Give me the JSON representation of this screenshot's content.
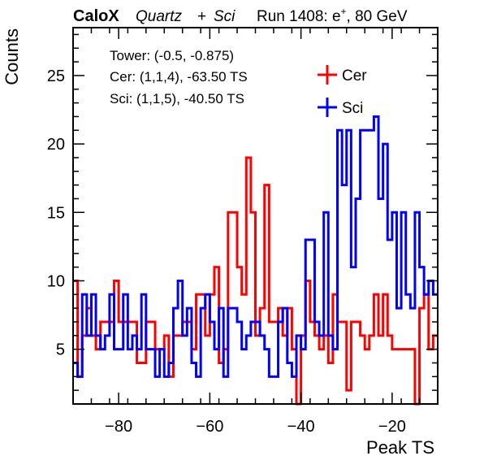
{
  "header": {
    "brand": "CaloX",
    "material_a": "Quartz",
    "plus": "+",
    "material_b": "Sci",
    "run_prefix": "Run 1408: e",
    "run_superscript": "+",
    "run_suffix": ", 80 GeV"
  },
  "info": {
    "tower": "Tower: (-0.5, -0.875)",
    "cer": "Cer: (1,1,4), -63.50 TS",
    "sci": "Sci: (1,1,5), -40.50 TS"
  },
  "chart_data": {
    "type": "line",
    "xlabel": "Peak TS",
    "ylabel": "Counts",
    "xlim": [
      -90,
      -10
    ],
    "ylim": [
      1,
      28.5
    ],
    "grid": false,
    "legend_position": "top-right",
    "x_ticks": [
      {
        "value": -80,
        "label": "−80"
      },
      {
        "value": -60,
        "label": "−60"
      },
      {
        "value": -40,
        "label": "−40"
      },
      {
        "value": -20,
        "label": "−20"
      }
    ],
    "y_ticks": [
      {
        "value": 5,
        "label": "5"
      },
      {
        "value": 10,
        "label": "10"
      },
      {
        "value": 15,
        "label": "15"
      },
      {
        "value": 20,
        "label": "20"
      },
      {
        "value": 25,
        "label": "25"
      }
    ],
    "bin_edges": [
      -90,
      -10
    ],
    "bin_count": 80,
    "series": [
      {
        "name": "Cer",
        "color": "#ff0000",
        "values": [
          10,
          3,
          6,
          8,
          6,
          5,
          7,
          7,
          7,
          10,
          7,
          7,
          7,
          7,
          4,
          4,
          7,
          7,
          5,
          5,
          6,
          3,
          6,
          6,
          7,
          7,
          5,
          9,
          9,
          6,
          9,
          11,
          4,
          5,
          15,
          15,
          11,
          9,
          19,
          15,
          6,
          8,
          17,
          7,
          7,
          8,
          6,
          8,
          5,
          1,
          6,
          10,
          7,
          6,
          5,
          6,
          4,
          9,
          7,
          7,
          2,
          7,
          7,
          6,
          5,
          6,
          9,
          6,
          9,
          6,
          5,
          5,
          5,
          5,
          5,
          1,
          8,
          9,
          5,
          6
        ]
      },
      {
        "name": "Sci",
        "color": "#0000ff",
        "values": [
          4,
          3,
          9,
          6,
          9,
          6,
          5,
          6,
          9,
          5,
          5,
          9,
          5,
          6,
          5,
          9,
          5,
          5,
          3,
          5,
          3,
          4,
          8,
          10,
          6,
          8,
          4,
          3,
          8,
          9,
          7,
          5,
          8,
          3,
          8,
          8,
          7,
          5,
          6,
          7,
          7,
          6,
          5,
          3,
          3,
          7,
          8,
          4,
          3,
          6,
          5,
          13,
          13,
          7,
          6,
          15,
          6,
          5,
          21,
          17,
          21,
          11,
          16,
          21,
          21,
          21,
          22,
          16,
          20,
          13,
          15,
          8,
          15,
          9,
          8,
          15,
          11,
          9,
          10,
          9
        ]
      }
    ]
  }
}
